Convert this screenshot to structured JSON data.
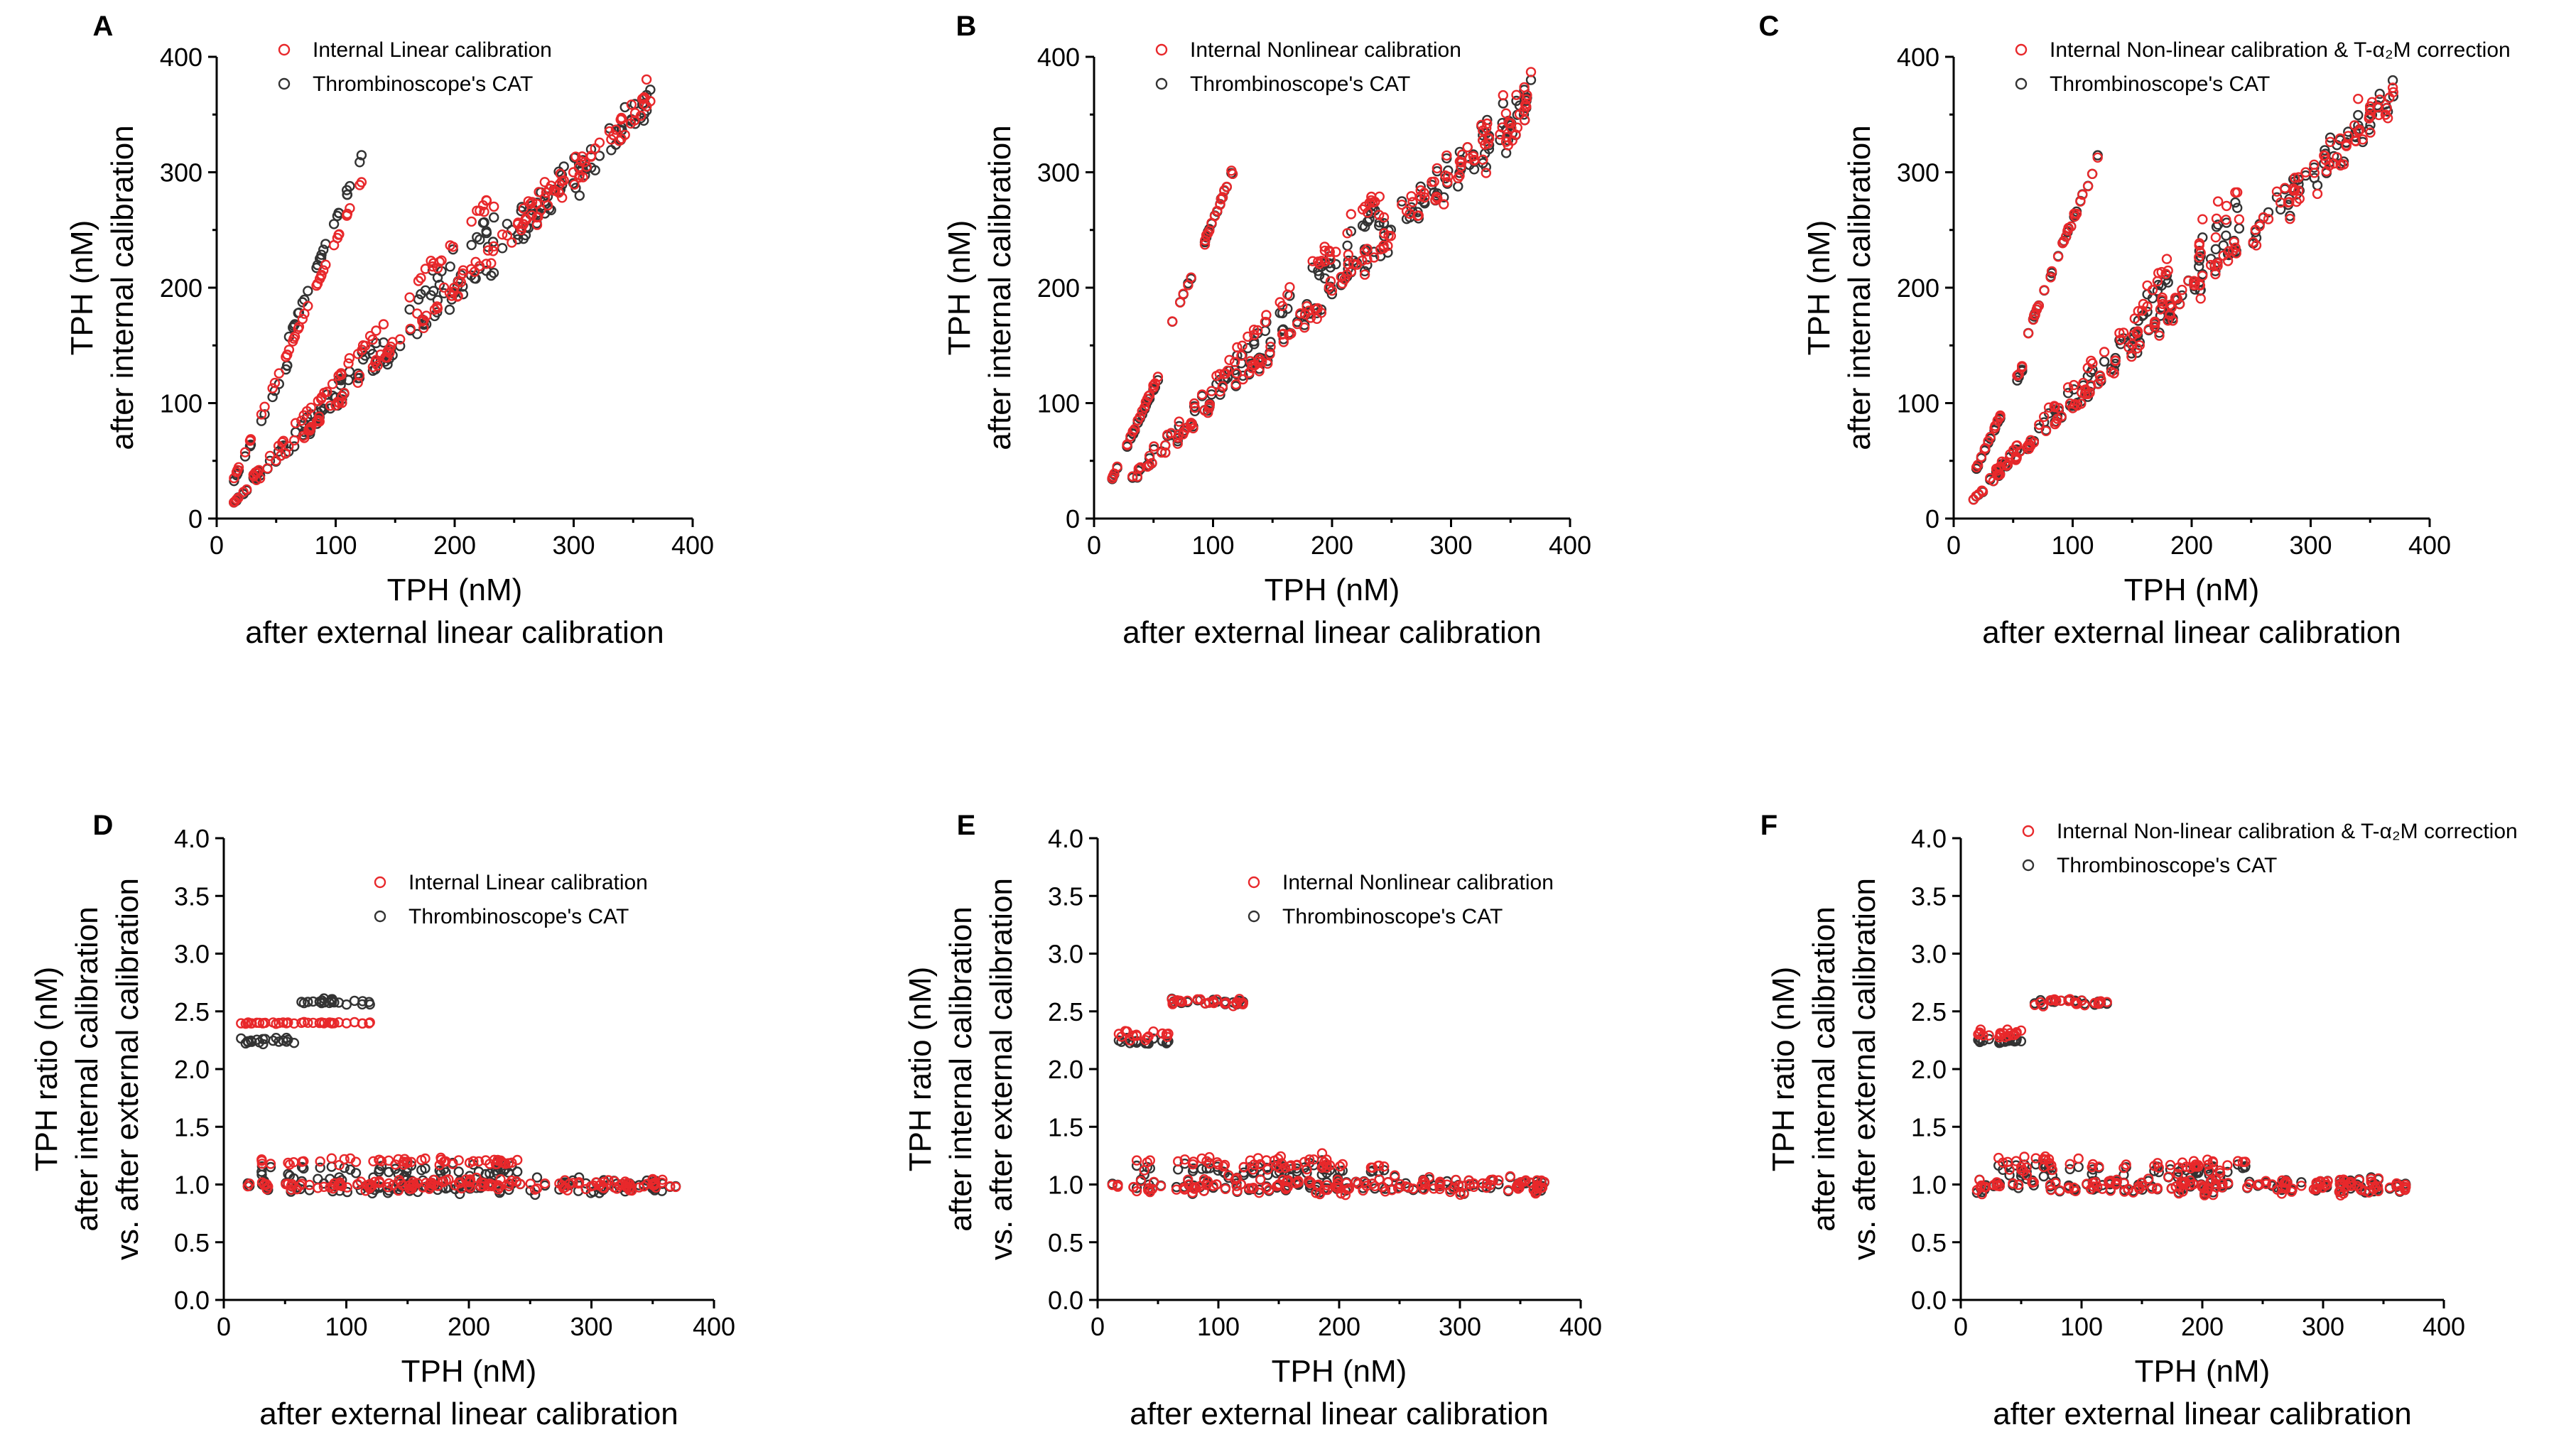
{
  "colors": {
    "internal": "#e8282b",
    "cat": "#333333"
  },
  "chart_data": [
    {
      "panel": "A",
      "type": "scatter",
      "xlabel": "TPH (nM)",
      "xlabel2": "after external linear calibration",
      "ylabel": "TPH (nM)",
      "ylabel2": "after internal calibration",
      "xlim": [
        0,
        400
      ],
      "ylim": [
        0,
        400
      ],
      "xticks": [
        0,
        100,
        200,
        300,
        400
      ],
      "yticks": [
        0,
        100,
        200,
        300,
        400
      ],
      "legend": [
        "Internal Linear calibration",
        "Thrombinoscope's CAT"
      ],
      "legend_position": "top-left",
      "mode": "absolute",
      "variant": "linear",
      "series": [
        {
          "name": "Internal Linear calibration",
          "color": "#e8282b"
        },
        {
          "name": "Thrombinoscope's CAT",
          "color": "#333333"
        }
      ]
    },
    {
      "panel": "B",
      "type": "scatter",
      "xlabel": "TPH (nM)",
      "xlabel2": "after external linear calibration",
      "ylabel": "TPH (nM)",
      "ylabel2": "after internal calibration",
      "xlim": [
        0,
        400
      ],
      "ylim": [
        0,
        400
      ],
      "xticks": [
        0,
        100,
        200,
        300,
        400
      ],
      "yticks": [
        0,
        100,
        200,
        300,
        400
      ],
      "legend": [
        "Internal Nonlinear calibration",
        "Thrombinoscope's CAT"
      ],
      "legend_position": "top-left",
      "mode": "absolute",
      "variant": "nonlinear",
      "series": [
        {
          "name": "Internal Nonlinear calibration",
          "color": "#e8282b"
        },
        {
          "name": "Thrombinoscope's CAT",
          "color": "#333333"
        }
      ]
    },
    {
      "panel": "C",
      "type": "scatter",
      "xlabel": "TPH (nM)",
      "xlabel2": "after external linear calibration",
      "ylabel": "TPH (nM)",
      "ylabel2": "after internal calibration",
      "xlim": [
        0,
        400
      ],
      "ylim": [
        0,
        400
      ],
      "xticks": [
        0,
        100,
        200,
        300,
        400
      ],
      "yticks": [
        0,
        100,
        200,
        300,
        400
      ],
      "legend": [
        "Internal Non-linear calibration & T-α₂M correction",
        "Thrombinoscope's CAT"
      ],
      "legend_position": "top-left",
      "mode": "absolute",
      "variant": "nonlinear",
      "series": [
        {
          "name": "Internal Non-linear calibration & T-α₂M correction",
          "color": "#e8282b"
        },
        {
          "name": "Thrombinoscope's CAT",
          "color": "#333333"
        }
      ]
    },
    {
      "panel": "D",
      "type": "scatter",
      "xlabel": "TPH (nM)",
      "xlabel2": "after external linear calibration",
      "ylabel": "TPH ratio (nM)",
      "ylabel2": "after internal calibration",
      "ylabel3": "vs. after external calibration",
      "xlim": [
        0,
        400
      ],
      "ylim": [
        0,
        4
      ],
      "xticks": [
        0,
        100,
        200,
        300,
        400
      ],
      "yticks": [
        0.0,
        0.5,
        1.0,
        1.5,
        2.0,
        2.5,
        3.0,
        3.5,
        4.0
      ],
      "legend": [
        "Internal Linear calibration",
        "Thrombinoscope's CAT"
      ],
      "legend_position": "top-center",
      "mode": "ratio",
      "variant": "linear",
      "series": [
        {
          "name": "Internal Linear calibration",
          "color": "#e8282b"
        },
        {
          "name": "Thrombinoscope's CAT",
          "color": "#333333"
        }
      ]
    },
    {
      "panel": "E",
      "type": "scatter",
      "xlabel": "TPH (nM)",
      "xlabel2": "after external linear calibration",
      "ylabel": "TPH ratio (nM)",
      "ylabel2": "after internal calibration",
      "ylabel3": "vs. after external calibration",
      "xlim": [
        0,
        400
      ],
      "ylim": [
        0,
        4
      ],
      "xticks": [
        0,
        100,
        200,
        300,
        400
      ],
      "yticks": [
        0.0,
        0.5,
        1.0,
        1.5,
        2.0,
        2.5,
        3.0,
        3.5,
        4.0
      ],
      "legend": [
        "Internal Nonlinear calibration",
        "Thrombinoscope's CAT"
      ],
      "legend_position": "top-center",
      "mode": "ratio",
      "variant": "nonlinear",
      "series": [
        {
          "name": "Internal Nonlinear calibration",
          "color": "#e8282b"
        },
        {
          "name": "Thrombinoscope's CAT",
          "color": "#333333"
        }
      ]
    },
    {
      "panel": "F",
      "type": "scatter",
      "xlabel": "TPH (nM)",
      "xlabel2": "after external linear calibration",
      "ylabel": "TPH ratio (nM)",
      "ylabel2": "after internal calibration",
      "ylabel3": "vs. after external calibration",
      "xlim": [
        0,
        400
      ],
      "ylim": [
        0,
        4
      ],
      "xticks": [
        0,
        100,
        200,
        300,
        400
      ],
      "yticks": [
        0.0,
        0.5,
        1.0,
        1.5,
        2.0,
        2.5,
        3.0,
        3.5,
        4.0
      ],
      "legend": [
        "Internal Non-linear calibration & T-α₂M correction",
        "Thrombinoscope's CAT"
      ],
      "legend_position": "top-left",
      "mode": "ratio",
      "variant": "nonlinear",
      "series": [
        {
          "name": "Internal Non-linear calibration & T-α₂M correction",
          "color": "#e8282b"
        },
        {
          "name": "Thrombinoscope's CAT",
          "color": "#333333"
        }
      ]
    }
  ]
}
